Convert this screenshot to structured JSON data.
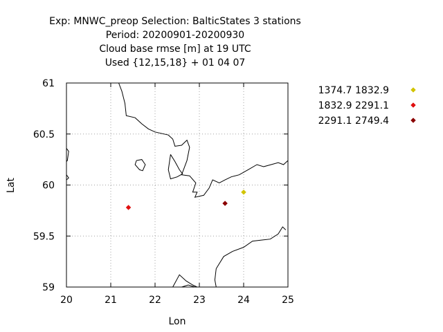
{
  "chart_data": {
    "type": "scatter",
    "title_lines": [
      "Exp: MNWC_preop   Selection: BalticStates      3 stations",
      "Period: 20200901-20200930",
      "Cloud base rmse [m] at  19 UTC",
      "Used {12,15,18} + 01 04 07"
    ],
    "xlabel": "Lon",
    "ylabel": "Lat",
    "xlim": [
      20,
      25
    ],
    "ylim": [
      59,
      61
    ],
    "xticks": [
      20,
      21,
      22,
      23,
      24,
      25
    ],
    "xtick_labels": [
      "20",
      "21",
      "22",
      "23",
      "24",
      "25"
    ],
    "yticks": [
      59,
      59.5,
      60,
      60.5,
      61
    ],
    "ytick_labels": [
      "59",
      "59.5",
      "60",
      "60.5",
      "61"
    ],
    "grid": true,
    "grid_style": "dotted",
    "legend_position": "right",
    "series": [
      {
        "name": "1374.7 1832.9",
        "color": "#d2c400",
        "marker": "diamond",
        "points": [
          {
            "x": 24.0,
            "y": 59.93
          }
        ]
      },
      {
        "name": "1832.9 2291.1",
        "color": "#e01010",
        "marker": "diamond",
        "points": [
          {
            "x": 21.4,
            "y": 59.78
          }
        ]
      },
      {
        "name": "2291.1 2749.4",
        "color": "#8b0000",
        "marker": "diamond",
        "points": [
          {
            "x": 23.58,
            "y": 59.82
          }
        ]
      }
    ],
    "coastlines": [
      [
        [
          21.18,
          61.0
        ],
        [
          21.25,
          60.92
        ],
        [
          21.32,
          60.8
        ],
        [
          21.35,
          60.68
        ],
        [
          21.55,
          60.66
        ],
        [
          21.7,
          60.6
        ],
        [
          21.85,
          60.55
        ],
        [
          22.0,
          60.52
        ],
        [
          22.3,
          60.49
        ],
        [
          22.4,
          60.45
        ],
        [
          22.45,
          60.38
        ],
        [
          22.6,
          60.39
        ],
        [
          22.72,
          60.44
        ],
        [
          22.78,
          60.37
        ],
        [
          22.72,
          60.24
        ],
        [
          22.6,
          60.1
        ],
        [
          22.78,
          60.09
        ],
        [
          22.92,
          60.02
        ],
        [
          22.85,
          59.93
        ],
        [
          22.95,
          59.93
        ],
        [
          22.9,
          59.88
        ],
        [
          23.1,
          59.9
        ],
        [
          23.22,
          59.97
        ],
        [
          23.3,
          60.05
        ],
        [
          23.45,
          60.02
        ],
        [
          23.58,
          60.05
        ],
        [
          23.72,
          60.08
        ],
        [
          23.9,
          60.1
        ],
        [
          24.1,
          60.15
        ],
        [
          24.3,
          60.2
        ],
        [
          24.45,
          60.18
        ],
        [
          24.62,
          60.2
        ],
        [
          24.78,
          60.22
        ],
        [
          24.9,
          60.2
        ],
        [
          25.0,
          60.24
        ]
      ],
      [
        [
          22.35,
          60.3
        ],
        [
          22.45,
          60.23
        ],
        [
          22.55,
          60.15
        ],
        [
          22.62,
          60.11
        ],
        [
          22.5,
          60.08
        ],
        [
          22.35,
          60.06
        ],
        [
          22.3,
          60.15
        ],
        [
          22.35,
          60.3
        ]
      ],
      [
        [
          21.58,
          60.24
        ],
        [
          21.7,
          60.25
        ],
        [
          21.78,
          60.2
        ],
        [
          21.72,
          60.14
        ],
        [
          21.65,
          60.15
        ],
        [
          21.55,
          60.2
        ],
        [
          21.58,
          60.24
        ]
      ],
      [
        [
          20.0,
          60.36
        ],
        [
          20.05,
          60.33
        ],
        [
          20.02,
          60.24
        ],
        [
          20.0,
          60.23
        ]
      ],
      [
        [
          20.0,
          60.1
        ],
        [
          20.05,
          60.07
        ],
        [
          20.0,
          60.05
        ]
      ],
      [
        [
          24.95,
          59.56
        ],
        [
          24.88,
          59.59
        ],
        [
          24.78,
          59.52
        ],
        [
          24.6,
          59.47
        ],
        [
          24.4,
          59.46
        ],
        [
          24.2,
          59.45
        ],
        [
          24.0,
          59.39
        ],
        [
          23.75,
          59.35
        ],
        [
          23.55,
          59.3
        ],
        [
          23.45,
          59.23
        ],
        [
          23.38,
          59.18
        ],
        [
          23.35,
          59.07
        ],
        [
          23.38,
          59.0
        ]
      ],
      [
        [
          22.4,
          59.0
        ],
        [
          22.55,
          59.12
        ],
        [
          22.7,
          59.06
        ],
        [
          22.85,
          59.02
        ],
        [
          22.95,
          59.0
        ]
      ],
      [
        [
          22.6,
          59.0
        ],
        [
          22.75,
          59.02
        ],
        [
          22.9,
          59.0
        ]
      ]
    ]
  }
}
